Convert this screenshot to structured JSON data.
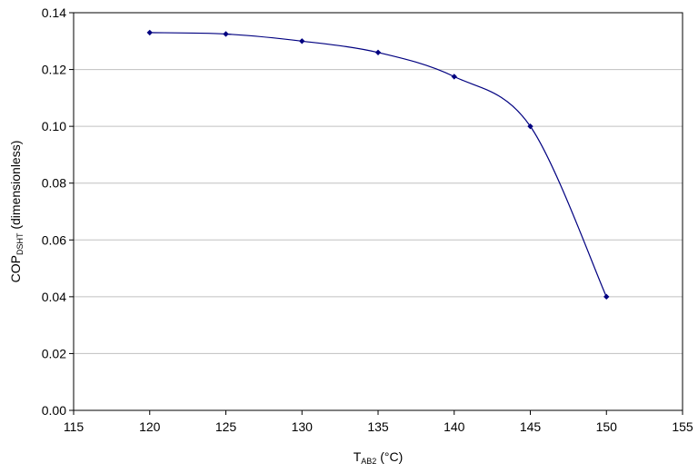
{
  "chart_data": {
    "type": "line",
    "title": "",
    "x": [
      120,
      125,
      130,
      135,
      140,
      145,
      150
    ],
    "series": [
      {
        "values": [
          0.133,
          0.1325,
          0.13,
          0.126,
          0.1175,
          0.1,
          0.04
        ]
      }
    ],
    "xlabel": {
      "main": "T",
      "subscript": "AB2",
      "suffix": " (°C)"
    },
    "ylabel": {
      "main": "COP",
      "subscript": "DSHT",
      "suffix": " (dimensionless)"
    },
    "xlim": [
      115,
      155
    ],
    "ylim": [
      0,
      0.14
    ],
    "xticks": [
      "115",
      "120",
      "125",
      "130",
      "135",
      "140",
      "145",
      "150",
      "155"
    ],
    "yticks": [
      "0.00",
      "0.02",
      "0.04",
      "0.06",
      "0.08",
      "0.10",
      "0.12",
      "0.14"
    ],
    "grid": "horizontal",
    "legend": "none",
    "colors": {
      "series": "#000080",
      "grid": "#c0c0c0",
      "axis": "#000000"
    }
  }
}
